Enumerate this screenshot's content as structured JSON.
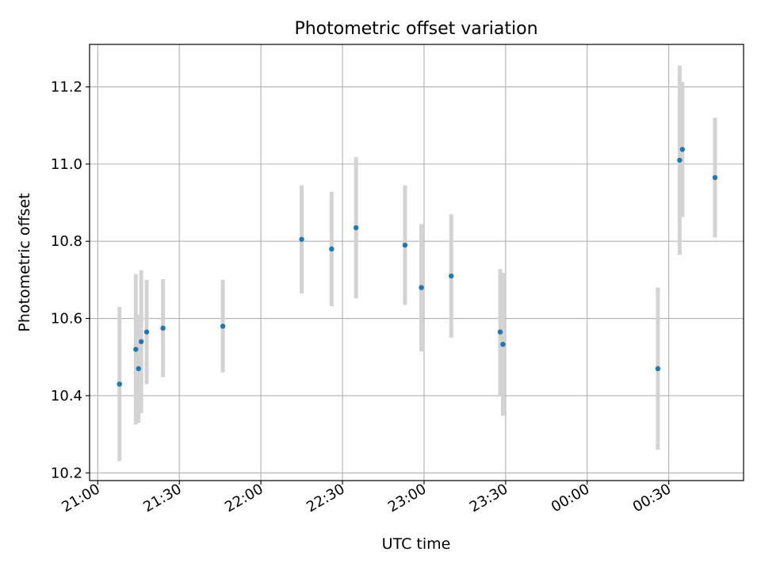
{
  "chart_data": {
    "type": "scatter",
    "title": "Photometric offset variation",
    "xlabel": "UTC time",
    "ylabel": "Photometric offset",
    "x_ticks": [
      "21:00",
      "21:30",
      "22:00",
      "22:30",
      "23:00",
      "23:30",
      "00:00",
      "00:30"
    ],
    "y_ticks": [
      "10.2",
      "10.4",
      "10.6",
      "10.8",
      "11.0",
      "11.2"
    ],
    "x_tick_minutes": [
      0,
      30,
      60,
      90,
      120,
      150,
      180,
      210
    ],
    "y_tick_values": [
      10.2,
      10.4,
      10.6,
      10.8,
      11.0,
      11.2
    ],
    "xlim_minutes": [
      -3,
      237.5
    ],
    "ylim": [
      10.18,
      11.31
    ],
    "grid": true,
    "colors": {
      "point": "#1f77b4",
      "errorbar": "#d3d3d3",
      "grid": "#b0b0b0"
    },
    "points": [
      {
        "time": "21:08",
        "y": 10.43,
        "err": 0.2
      },
      {
        "time": "21:14",
        "y": 10.52,
        "err": 0.195
      },
      {
        "time": "21:15",
        "y": 10.47,
        "err": 0.14
      },
      {
        "time": "21:16",
        "y": 10.54,
        "err": 0.185
      },
      {
        "time": "21:18",
        "y": 10.565,
        "err": 0.135
      },
      {
        "time": "21:24",
        "y": 10.575,
        "err": 0.127
      },
      {
        "time": "21:46",
        "y": 10.58,
        "err": 0.12
      },
      {
        "time": "22:15",
        "y": 10.805,
        "err": 0.14
      },
      {
        "time": "22:26",
        "y": 10.78,
        "err": 0.148
      },
      {
        "time": "22:35",
        "y": 10.835,
        "err": 0.183
      },
      {
        "time": "22:53",
        "y": 10.79,
        "err": 0.155
      },
      {
        "time": "22:59",
        "y": 10.68,
        "err": 0.165
      },
      {
        "time": "23:10",
        "y": 10.71,
        "err": 0.16
      },
      {
        "time": "23:28",
        "y": 10.565,
        "err": 0.163
      },
      {
        "time": "23:29",
        "y": 10.533,
        "err": 0.185
      },
      {
        "time": "00:26",
        "y": 10.47,
        "err": 0.21
      },
      {
        "time": "00:34",
        "y": 11.01,
        "err": 0.245
      },
      {
        "time": "00:35",
        "y": 11.038,
        "err": 0.175
      },
      {
        "time": "00:47",
        "y": 10.965,
        "err": 0.155
      }
    ]
  }
}
